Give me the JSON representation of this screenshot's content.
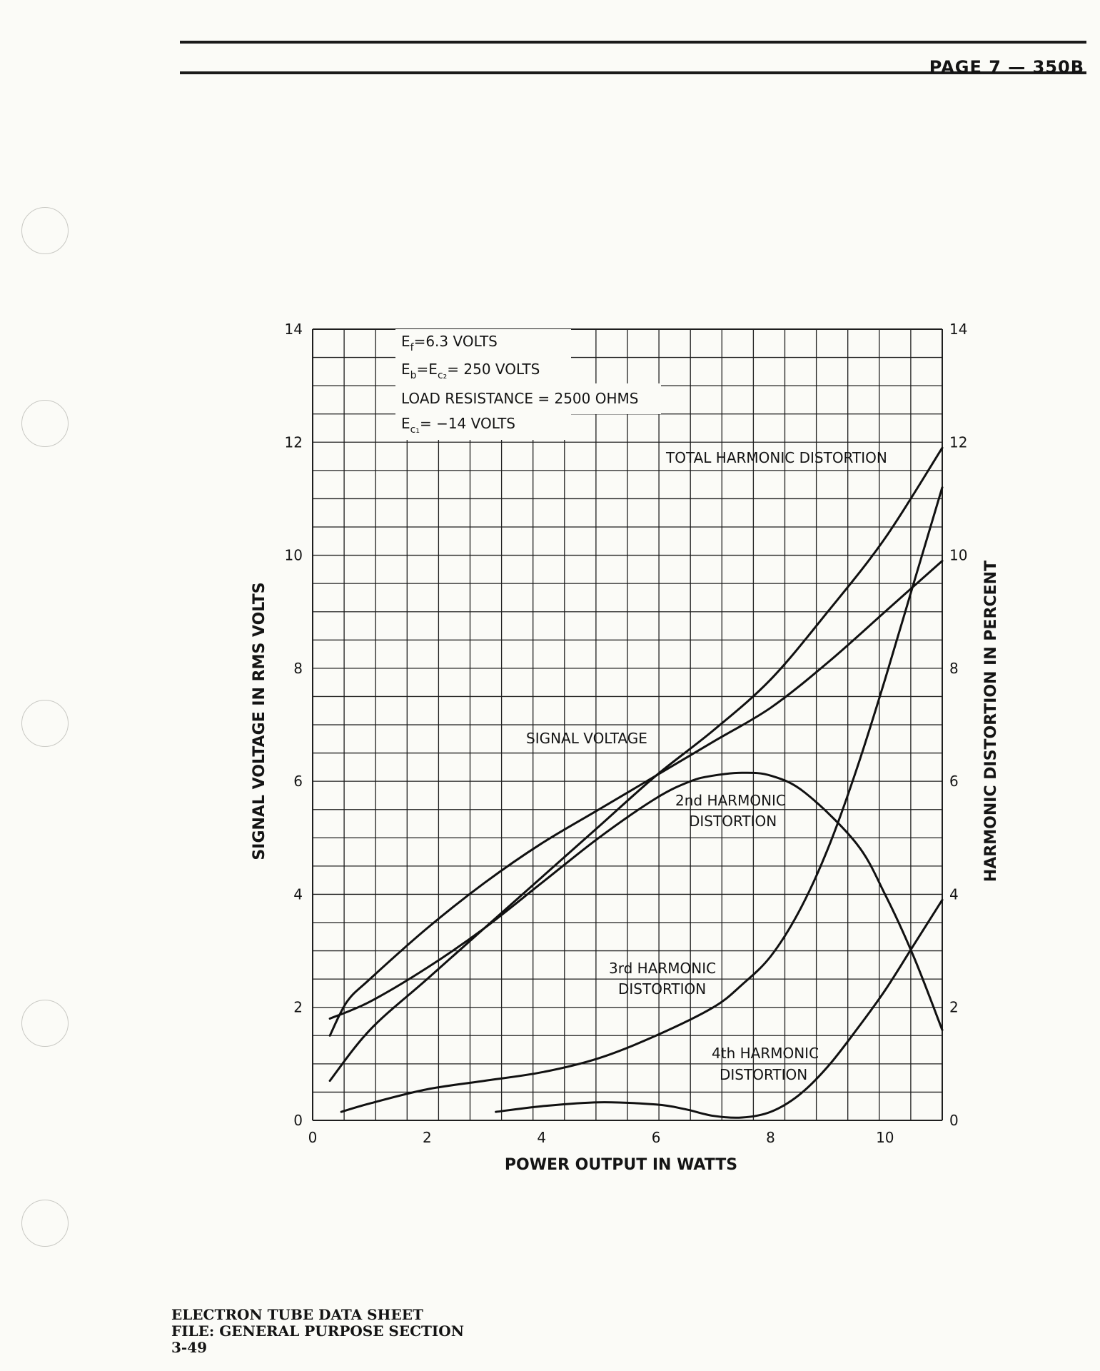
{
  "header": {
    "page_number": "PAGE 7 — 350B"
  },
  "footer": {
    "line1": "ELECTRON TUBE DATA SHEET",
    "line2": "FILE: GENERAL PURPOSE SECTION",
    "line3": "3-49"
  },
  "chart_data": {
    "type": "line",
    "xlabel": "POWER OUTPUT IN WATTS",
    "ylabel_left": "SIGNAL VOLTAGE IN RMS VOLTS",
    "ylabel_right": "HARMONIC DISTORTION IN PERCENT",
    "xlim": [
      0,
      11
    ],
    "ylim_left": [
      0,
      14
    ],
    "ylim_right": [
      0,
      14
    ],
    "x_ticks": [
      "0",
      "2",
      "4",
      "6",
      "8",
      "10"
    ],
    "y_ticks_left": [
      "0",
      "2",
      "4",
      "6",
      "8",
      "10",
      "12",
      "14"
    ],
    "y_ticks_right": [
      "0",
      "2",
      "4",
      "6",
      "8",
      "10",
      "12",
      "14"
    ],
    "grid": true,
    "conditions": {
      "ef": {
        "sym": "E",
        "sub": "f",
        "text": "=6.3 VOLTS"
      },
      "eb": {
        "sym": "E",
        "sub": "b",
        "mid": "=E",
        "sub2": "c₂",
        "text": "= 250 VOLTS"
      },
      "load": "LOAD RESISTANCE = 2500 OHMS",
      "ec1": {
        "sym": "E",
        "sub": "c₁",
        "text": "= −14 VOLTS"
      }
    },
    "series": [
      {
        "name": "SIGNAL VOLTAGE",
        "axis": "left",
        "x": [
          0.3,
          0.6,
          1,
          2,
          3,
          4,
          5,
          6,
          7,
          8,
          9,
          10,
          11
        ],
        "y": [
          1.5,
          2.1,
          2.5,
          3.4,
          4.2,
          4.9,
          5.5,
          6.1,
          6.7,
          7.3,
          8.1,
          9.0,
          9.9
        ]
      },
      {
        "name": "TOTAL HARMONIC DISTORTION",
        "axis": "right",
        "x": [
          0.3,
          1,
          2,
          3,
          4,
          5,
          6,
          7,
          8,
          9,
          10,
          11
        ],
        "y": [
          0.7,
          1.6,
          2.5,
          3.4,
          4.3,
          5.2,
          6.1,
          6.9,
          7.8,
          9.0,
          10.3,
          11.9
        ]
      },
      {
        "name": "2nd HARMONIC DISTORTION",
        "axis": "right",
        "x": [
          0.3,
          1,
          2,
          3,
          4,
          5,
          6,
          6.6,
          7,
          7.5,
          8,
          8.6,
          9.5,
          10,
          10.5,
          11
        ],
        "y": [
          1.8,
          2.1,
          2.7,
          3.4,
          4.2,
          5.0,
          5.7,
          6.0,
          6.1,
          6.15,
          6.1,
          5.8,
          4.9,
          4.0,
          2.9,
          1.6
        ]
      },
      {
        "name": "3rd HARMONIC DISTORTION",
        "axis": "right",
        "x": [
          0.5,
          1,
          2,
          3,
          4,
          5,
          6,
          7,
          7.5,
          8,
          8.5,
          9,
          9.5,
          10,
          10.5,
          11
        ],
        "y": [
          0.15,
          0.3,
          0.55,
          0.7,
          0.85,
          1.1,
          1.5,
          2.0,
          2.4,
          2.9,
          3.7,
          4.8,
          6.2,
          7.8,
          9.5,
          11.2
        ]
      },
      {
        "name": "4th HARMONIC DISTORTION",
        "axis": "right",
        "x": [
          3.2,
          4,
          5,
          6,
          6.5,
          7,
          7.5,
          8,
          8.5,
          9,
          9.5,
          10,
          10.5,
          11
        ],
        "y": [
          0.15,
          0.25,
          0.32,
          0.28,
          0.2,
          0.08,
          0.05,
          0.15,
          0.45,
          0.95,
          1.6,
          2.3,
          3.1,
          3.9
        ]
      }
    ],
    "labels": {
      "signal": "SIGNAL VOLTAGE",
      "total": "TOTAL HARMONIC DISTORTION",
      "second_1": "2nd HARMONIC",
      "second_2": "DISTORTION",
      "third_1": "3rd HARMONIC",
      "third_2": "DISTORTION",
      "fourth_1": "4th HARMONIC",
      "fourth_2": "DISTORTION"
    }
  }
}
